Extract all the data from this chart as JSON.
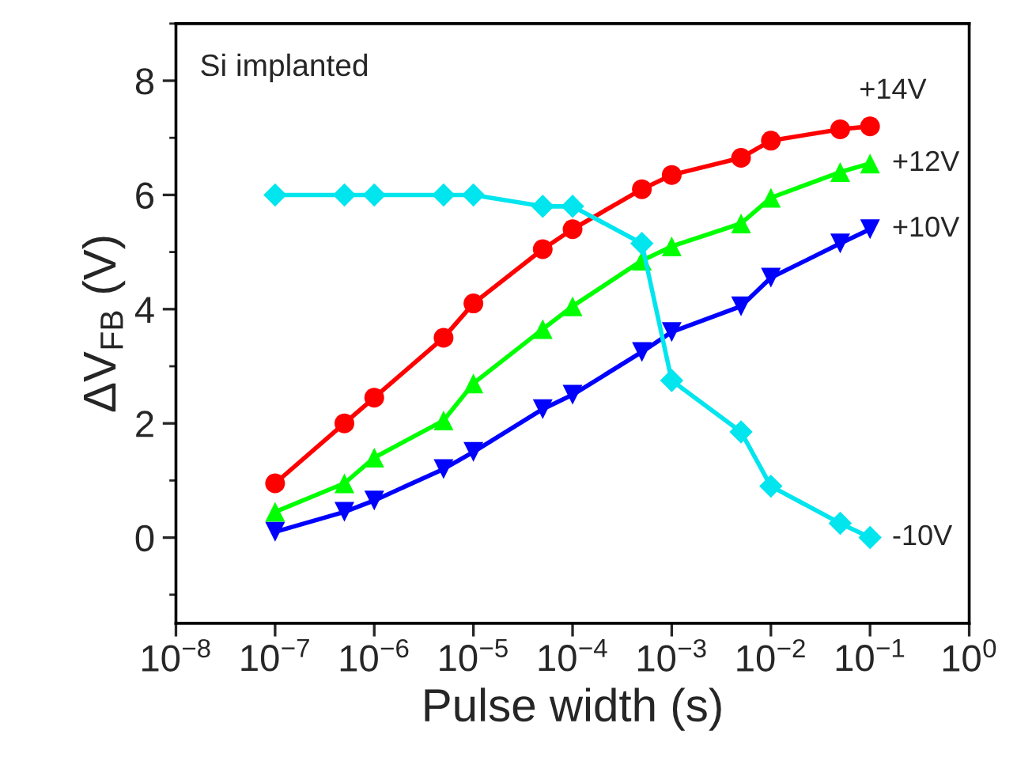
{
  "chart_data": {
    "type": "line",
    "xlabel": "Pulse width (s)",
    "ylabel": "ΔV$_{FB}$ (V)",
    "log": "x",
    "grid": false,
    "legend": false,
    "annotations": [
      "Si implanted"
    ],
    "x": [
      1e-07,
      5e-07,
      1e-06,
      5e-06,
      1e-05,
      5e-05,
      0.0001,
      0.0005,
      0.001,
      0.005,
      0.01,
      0.05,
      0.1
    ],
    "series": [
      {
        "name": "+14V",
        "color": "#ff0000",
        "marker": "circle",
        "values": [
          0.95,
          2.0,
          2.45,
          3.5,
          4.1,
          5.05,
          5.4,
          6.1,
          6.35,
          6.65,
          6.95,
          7.15,
          7.2
        ]
      },
      {
        "name": "+12V",
        "color": "#00ff00",
        "marker": "triangle",
        "values": [
          0.45,
          0.95,
          1.4,
          2.05,
          2.7,
          3.65,
          4.05,
          4.85,
          5.1,
          5.5,
          5.95,
          6.4,
          6.55
        ]
      },
      {
        "name": "+10V",
        "color": "#0000ff",
        "marker": "triangle_down",
        "values": [
          0.1,
          0.45,
          0.65,
          1.2,
          1.5,
          2.25,
          2.5,
          3.25,
          3.6,
          4.05,
          4.55,
          5.15,
          5.4
        ]
      },
      {
        "name": "-10V",
        "color": "#00e5ee",
        "marker": "diamond",
        "values": [
          6.0,
          6.0,
          6.0,
          6.0,
          6.0,
          5.8,
          5.8,
          5.15,
          2.75,
          1.85,
          0.9,
          0.25,
          0.0
        ]
      }
    ],
    "xlim": [
      1e-08,
      1
    ],
    "xticks": [
      {
        "value": 1e-08,
        "label": "10$^{−8}$"
      },
      {
        "value": 1e-07,
        "label": "10$^{−7}$"
      },
      {
        "value": 1e-06,
        "label": "10$^{−6}$"
      },
      {
        "value": 1e-05,
        "label": "10$^{−5}$"
      },
      {
        "value": 0.0001,
        "label": "10$^{−4}$"
      },
      {
        "value": 0.001,
        "label": "10$^{−3}$"
      },
      {
        "value": 0.01,
        "label": "10$^{−2}$"
      },
      {
        "value": 0.1,
        "label": "10$^{−1}$"
      },
      {
        "value": 1,
        "label": "10$^{0}$"
      }
    ],
    "ylim": [
      -1.5,
      9
    ],
    "yticks": [
      0,
      2,
      4,
      6,
      8
    ]
  }
}
